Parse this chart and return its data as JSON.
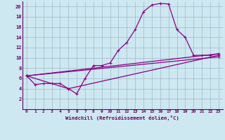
{
  "xlabel": "Windchill (Refroidissement éolien,°C)",
  "bg_color": "#cde8f0",
  "line_color": "#880088",
  "grid_color": "#a0b8cc",
  "xlim": [
    -0.5,
    23.5
  ],
  "ylim": [
    0,
    21
  ],
  "xticks": [
    0,
    1,
    2,
    3,
    4,
    5,
    6,
    7,
    8,
    9,
    10,
    11,
    12,
    13,
    14,
    15,
    16,
    17,
    18,
    19,
    20,
    21,
    22,
    23
  ],
  "yticks": [
    2,
    4,
    6,
    8,
    10,
    12,
    14,
    16,
    18,
    20
  ],
  "line1_x": [
    0,
    1,
    2,
    3,
    4,
    5,
    6,
    7,
    8,
    9,
    10,
    11,
    12,
    13,
    14,
    15,
    16,
    17,
    18,
    19,
    20,
    21,
    22,
    23
  ],
  "line1_y": [
    6.5,
    4.8,
    5.0,
    5.0,
    5.0,
    4.0,
    3.0,
    6.0,
    8.5,
    8.5,
    9.0,
    11.5,
    13.0,
    15.5,
    19.0,
    20.3,
    20.6,
    20.5,
    15.5,
    14.0,
    10.5,
    10.5,
    10.5,
    10.8
  ],
  "line2_x": [
    0,
    23
  ],
  "line2_y": [
    6.5,
    10.8
  ],
  "line3_x": [
    0,
    5,
    23
  ],
  "line3_y": [
    6.5,
    4.0,
    10.5
  ],
  "line4_x": [
    0,
    23
  ],
  "line4_y": [
    6.5,
    10.2
  ]
}
